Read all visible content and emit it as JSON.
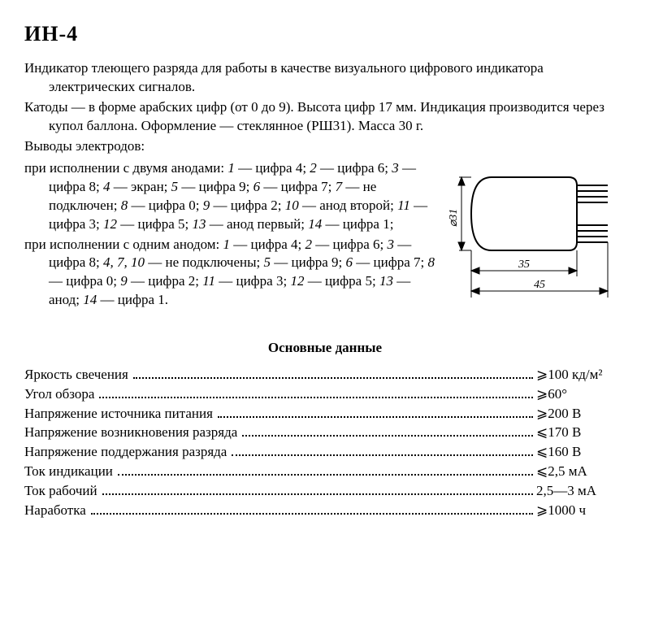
{
  "title": "ИН-4",
  "intro": {
    "p1": "Индикатор тлеющего разряда для работы в качестве визуального цифрового индикатора электрических сигналов.",
    "p2": "Катоды — в форме арабских цифр (от 0 до 9). Высота цифр 17 мм. Индикация производится через купол баллона. Оформление — стеклянное (РШ31). Масса 30 г.",
    "p3": "Выводы электродов:"
  },
  "pinouts": {
    "twoAnodeHeader": "при исполнении с двумя анодами:",
    "twoAnode": [
      {
        "n": "1",
        "t": "цифра 4"
      },
      {
        "n": "2",
        "t": "цифра 6"
      },
      {
        "n": "3",
        "t": "цифра 8"
      },
      {
        "n": "4",
        "t": "экран"
      },
      {
        "n": "5",
        "t": "цифра 9"
      },
      {
        "n": "6",
        "t": "цифра 7"
      },
      {
        "n": "7",
        "t": "не подключен"
      },
      {
        "n": "8",
        "t": "цифра 0"
      },
      {
        "n": "9",
        "t": "цифра 2"
      },
      {
        "n": "10",
        "t": "анод второй"
      },
      {
        "n": "11",
        "t": "цифра 3"
      },
      {
        "n": "12",
        "t": "цифра 5"
      },
      {
        "n": "13",
        "t": "анод первый"
      },
      {
        "n": "14",
        "t": "цифра 1"
      }
    ],
    "oneAnodeHeader": "при исполнении с одним анодом:",
    "oneAnode": [
      {
        "n": "1",
        "t": "цифра 4"
      },
      {
        "n": "2",
        "t": "цифра 6"
      },
      {
        "n": "3",
        "t": "цифра 8"
      },
      {
        "n": "4, 7, 10",
        "t": "не подключены"
      },
      {
        "n": "5",
        "t": "цифра 9"
      },
      {
        "n": "6",
        "t": "цифра 7"
      },
      {
        "n": "8",
        "t": "цифра 0"
      },
      {
        "n": "9",
        "t": "цифра 2"
      },
      {
        "n": "11",
        "t": "цифра 3"
      },
      {
        "n": "12",
        "t": "цифра 5"
      },
      {
        "n": "13",
        "t": "анод"
      },
      {
        "n": "14",
        "t": "цифра 1"
      }
    ]
  },
  "figure": {
    "dim_diameter": "⌀31",
    "dim_body": "35",
    "dim_total": "45",
    "stroke": "#000000",
    "fill": "#ffffff",
    "fontsize_dim": 14
  },
  "specsTitle": "Основные данные",
  "specs": [
    {
      "label": "Яркость свечения",
      "value": "⩾100  кд/м²"
    },
    {
      "label": "Угол обзора",
      "value": "⩾60°"
    },
    {
      "label": "Напряжение источника питания",
      "value": "⩾200 В"
    },
    {
      "label": "Напряжение возникновения разряда",
      "value": "⩽170 В"
    },
    {
      "label": "Напряжение поддержания разряда",
      "value": "⩽160 В"
    },
    {
      "label": "Ток индикации",
      "value": "⩽2,5 мА"
    },
    {
      "label": "Ток рабочий",
      "value": "2,5—3 мА"
    },
    {
      "label": "Наработка",
      "value": "⩾1000 ч"
    }
  ]
}
